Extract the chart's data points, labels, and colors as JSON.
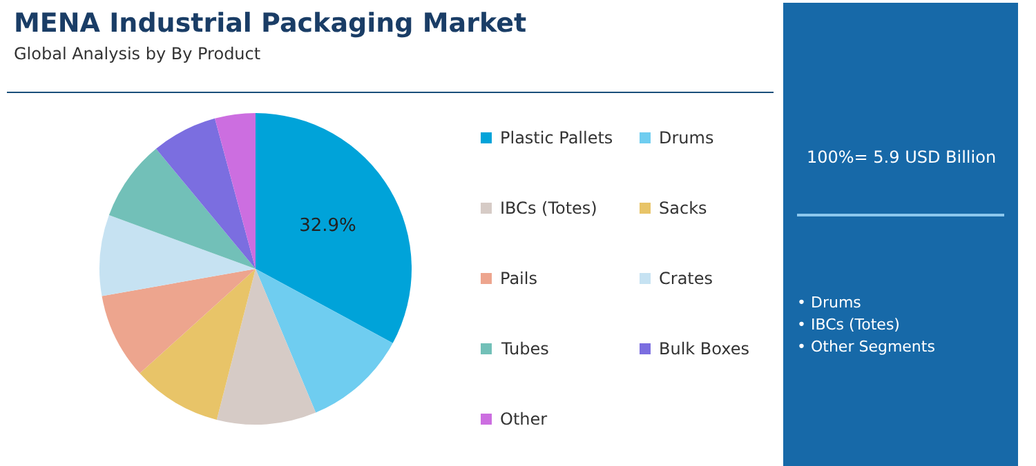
{
  "chart_data": {
    "type": "pie",
    "title": "MENA Industrial Packaging Market",
    "subtitle": "Global Analysis by By Product",
    "categories": [
      "Plastic Pallets",
      "Drums",
      "IBCs (Totes)",
      "Sacks",
      "Pails",
      "Crates",
      "Tubes",
      "Bulk Boxes",
      "Other"
    ],
    "values": [
      32.9,
      10.8,
      10.3,
      9.3,
      8.9,
      8.4,
      8.4,
      6.8,
      4.2
    ],
    "colors": [
      "#00a3d9",
      "#6fcdf0",
      "#d6cbc6",
      "#e8c468",
      "#eda58e",
      "#c6e2f2",
      "#72c0b8",
      "#7b6ee0",
      "#cc6ee0"
    ],
    "value_labels": [
      "32.9%",
      null,
      null,
      null,
      null,
      null,
      null,
      null,
      null
    ],
    "legend": "right",
    "annotations": [
      "100%= 5.9 USD Billion",
      "• Drums",
      "• IBCs (Totes)",
      "• Other Segments"
    ]
  }
}
